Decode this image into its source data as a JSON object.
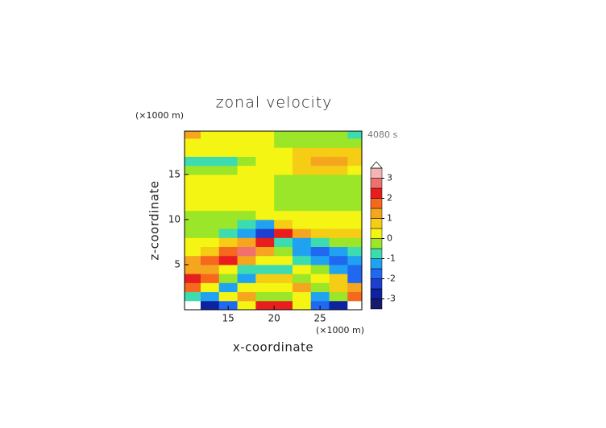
{
  "chart_data": {
    "type": "contour",
    "title": "zonal velocity",
    "xlabel": "x-coordinate",
    "ylabel": "z-coordinate",
    "x_unit": "(×1000 m)",
    "y_unit": "(×1000 m)",
    "time_label": "4080 s",
    "xlim": [
      10.25,
      29.55
    ],
    "ylim": [
      0,
      19.8
    ],
    "xticks": [
      15,
      20,
      25
    ],
    "yticks": [
      5,
      10,
      15
    ],
    "x": [
      11,
      13,
      15,
      17,
      19,
      21,
      23,
      25,
      27,
      29
    ],
    "y": [
      0.5,
      1.5,
      2.5,
      3.5,
      4.5,
      5.5,
      6.5,
      7.5,
      8.5,
      9.5,
      10.5,
      11.5,
      12.5,
      13.5,
      14.5,
      15.5,
      16.5,
      17.5,
      18.5,
      19.5
    ],
    "z": [
      [
        3.6,
        -3,
        -2,
        0.3,
        2,
        2,
        0.3,
        -1.8,
        -3,
        3.6
      ],
      [
        -0.7,
        -1.2,
        0.3,
        1.2,
        -0.5,
        -0.5,
        0.3,
        -1.2,
        -0.5,
        1.5
      ],
      [
        1.5,
        0.3,
        -1.5,
        0.3,
        0.3,
        0.3,
        1.2,
        -0.5,
        0.8,
        1.2
      ],
      [
        2.2,
        1.5,
        -0.3,
        -1.2,
        0.8,
        0.8,
        -0.5,
        0.3,
        0.8,
        -2
      ],
      [
        1.2,
        1.2,
        0.3,
        -0.6,
        -1,
        -0.7,
        0.3,
        -0.5,
        -1.5,
        -2
      ],
      [
        1,
        1.5,
        2,
        1.2,
        0.3,
        0.3,
        -0.8,
        -1.5,
        -2,
        -1.5
      ],
      [
        0.3,
        0.8,
        1.5,
        2.6,
        1.2,
        -0.5,
        -1.5,
        -2,
        -1.5,
        -0.8
      ],
      [
        0.3,
        0.3,
        0.8,
        1.2,
        2.2,
        -1,
        -1.3,
        -0.6,
        -0.2,
        -0.2
      ],
      [
        -0.2,
        -0.2,
        -0.7,
        -1.5,
        -2.2,
        2.2,
        1.2,
        0.8,
        0.8,
        0.6
      ],
      [
        -0.2,
        -0.2,
        -0.2,
        -0.8,
        -1.2,
        0.8,
        0.3,
        0.3,
        0.3,
        0.3
      ],
      [
        -0.2,
        -0.2,
        -0.2,
        -0.2,
        0.3,
        0.3,
        0.3,
        0.3,
        0.3,
        0.3
      ],
      [
        0.3,
        0.3,
        0.3,
        0.3,
        0.3,
        -0.2,
        -0.2,
        -0.2,
        -0.2,
        -0.2
      ],
      [
        0.3,
        0.3,
        0.3,
        0.3,
        0.3,
        -0.2,
        -0.2,
        -0.2,
        -0.2,
        -0.2
      ],
      [
        0.3,
        0.3,
        0.3,
        0.3,
        0.3,
        -0.2,
        -0.2,
        -0.2,
        -0.2,
        -0.2
      ],
      [
        0.3,
        0.3,
        0.3,
        0.3,
        0.3,
        -0.2,
        -0.2,
        -0.2,
        -0.2,
        -0.2
      ],
      [
        -0.3,
        -0.3,
        -0.3,
        0.3,
        0.3,
        0.3,
        0.6,
        0.8,
        0.6,
        0.3
      ],
      [
        -0.7,
        -0.8,
        -0.7,
        -0.3,
        0.3,
        0.3,
        0.8,
        1,
        1,
        0.8
      ],
      [
        0.3,
        0.3,
        0.3,
        0.3,
        0.3,
        0.3,
        0.6,
        0.8,
        0.8,
        0.6
      ],
      [
        0.3,
        0.3,
        0.3,
        0.3,
        0.3,
        -0.2,
        -0.2,
        -0.2,
        -0.2,
        -0.2
      ],
      [
        1,
        0.3,
        0.3,
        0.3,
        0.3,
        -0.2,
        -0.2,
        -0.2,
        -0.5,
        -0.8
      ]
    ],
    "colorbar": {
      "levels": [
        -3.5,
        -3,
        -2.5,
        -2,
        -1.5,
        -1,
        -0.5,
        0,
        0.5,
        1,
        1.5,
        2,
        2.5,
        3,
        3.5
      ],
      "colors": [
        "#16196e",
        "#0c22a0",
        "#1e3ed2",
        "#2068f0",
        "#20a2f0",
        "#3cdcb0",
        "#9be628",
        "#f5f514",
        "#f5cd14",
        "#f5a51e",
        "#f5681e",
        "#e81e1e",
        "#f07070",
        "#f5b4b4"
      ],
      "over_color": "#ffffff",
      "ticks": [
        -3,
        -2,
        -1,
        0,
        1,
        2,
        3
      ]
    }
  }
}
